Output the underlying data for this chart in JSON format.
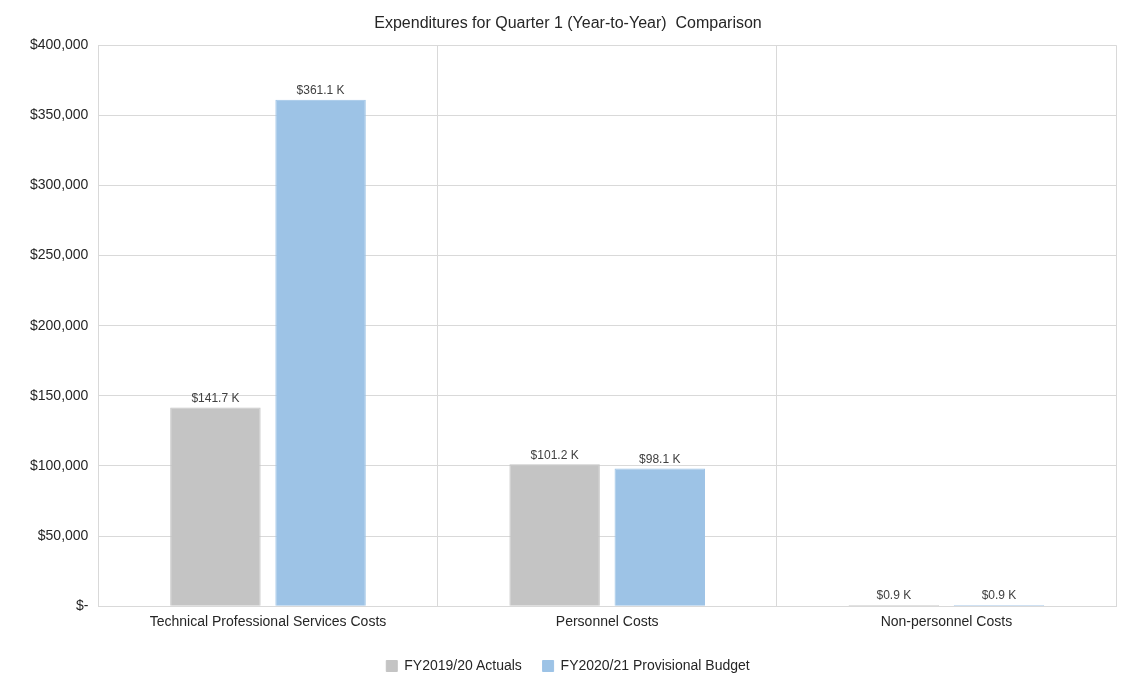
{
  "chart_data": {
    "type": "bar",
    "title": "Expenditures for Quarter 1 (Year-to-Year)  Comparison",
    "categories": [
      "Technical Professional Services Costs",
      "Personnel Costs",
      "Non-personnel Costs"
    ],
    "series": [
      {
        "name": "FY2019/20 Actuals",
        "color": "#c4c4c4",
        "values": [
          141700,
          101200,
          900
        ],
        "value_labels": [
          "$141.7 K",
          "$101.2 K",
          "$0.9 K"
        ]
      },
      {
        "name": "FY2020/21 Provisional Budget",
        "color": "#9dc3e6",
        "values": [
          361100,
          98100,
          900
        ],
        "value_labels": [
          "$361.1 K",
          "$98.1 K",
          "$0.9 K"
        ]
      }
    ],
    "ylim": [
      0,
      400000
    ],
    "yticks": [
      {
        "value": 0,
        "label": "$-"
      },
      {
        "value": 50000,
        "label": "$50,000"
      },
      {
        "value": 100000,
        "label": "$100,000"
      },
      {
        "value": 150000,
        "label": "$150,000"
      },
      {
        "value": 200000,
        "label": "$200,000"
      },
      {
        "value": 250000,
        "label": "$250,000"
      },
      {
        "value": 300000,
        "label": "$300,000"
      },
      {
        "value": 350000,
        "label": "$350,000"
      },
      {
        "value": 400000,
        "label": "$400,000"
      }
    ],
    "grid": true,
    "legend": "bottom"
  }
}
